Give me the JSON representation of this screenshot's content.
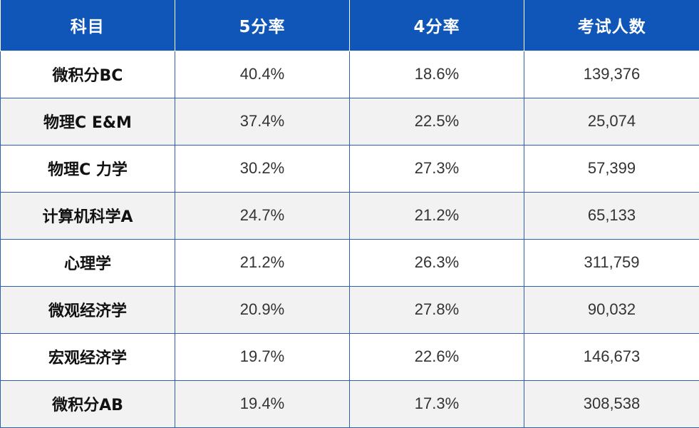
{
  "table": {
    "headers": [
      "科目",
      "5分率",
      "4分率",
      "考试人数"
    ],
    "rows": [
      {
        "subject": "微积分BC",
        "rate5": "40.4%",
        "rate4": "18.6%",
        "takers": "139,376"
      },
      {
        "subject": "物理C E&M",
        "rate5": "37.4%",
        "rate4": "22.5%",
        "takers": "25,074"
      },
      {
        "subject": "物理C 力学",
        "rate5": "30.2%",
        "rate4": "27.3%",
        "takers": "57,399"
      },
      {
        "subject": "计算机科学A",
        "rate5": "24.7%",
        "rate4": "21.2%",
        "takers": "65,133"
      },
      {
        "subject": "心理学",
        "rate5": "21.2%",
        "rate4": "26.3%",
        "takers": "311,759"
      },
      {
        "subject": "微观经济学",
        "rate5": "20.9%",
        "rate4": "27.8%",
        "takers": "90,032"
      },
      {
        "subject": "宏观经济学",
        "rate5": "19.7%",
        "rate4": "22.6%",
        "takers": "146,673"
      },
      {
        "subject": "微积分AB",
        "rate5": "19.4%",
        "rate4": "17.3%",
        "takers": "308,538"
      }
    ]
  },
  "colors": {
    "header_bg": "#0f56b8",
    "header_text": "#ffffff",
    "row_alt_bg": "#f2f2f2",
    "grid_line": "#2f5fb0"
  }
}
